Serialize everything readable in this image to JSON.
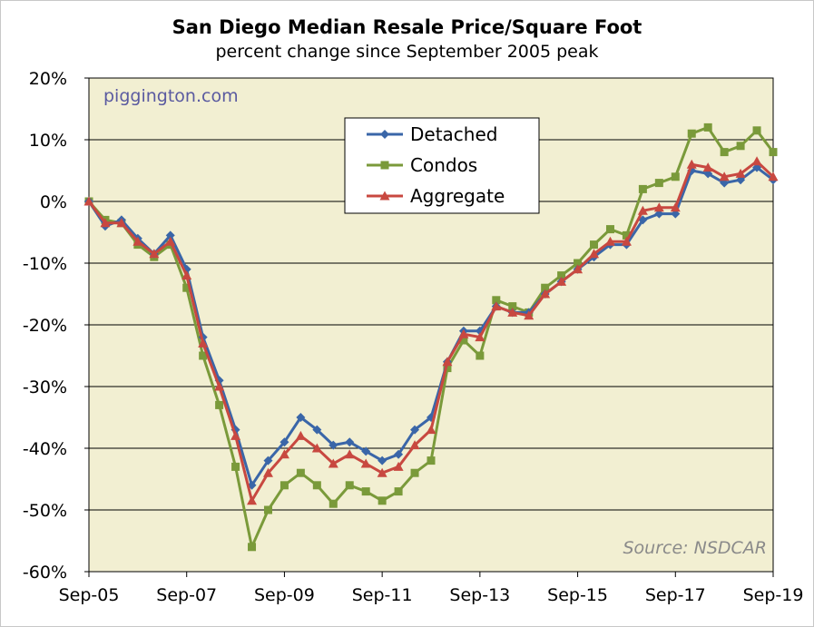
{
  "chart_data": {
    "type": "line",
    "title": "San Diego Median Resale Price/Square Foot",
    "subtitle": "percent change since September 2005 peak",
    "xlabel": "",
    "ylabel": "",
    "watermark": "piggington.com",
    "source": "Source: NSDCAR",
    "xlim": [
      "2005-09",
      "2019-09"
    ],
    "ylim": [
      -60,
      20
    ],
    "y_ticks": [
      20,
      10,
      0,
      -10,
      -20,
      -30,
      -40,
      -50,
      -60
    ],
    "y_tick_labels": [
      "20%",
      "10%",
      "0%",
      "-10%",
      "-20%",
      "-30%",
      "-40%",
      "-50%",
      "-60%"
    ],
    "x_tick_labels": [
      "Sep-05",
      "Sep-07",
      "Sep-09",
      "Sep-11",
      "Sep-13",
      "Sep-15",
      "Sep-17",
      "Sep-19"
    ],
    "x_tick_dates": [
      "2005-09",
      "2007-09",
      "2009-09",
      "2011-09",
      "2013-09",
      "2015-09",
      "2017-09",
      "2019-09"
    ],
    "grid": "horizontal",
    "legend_position": "top-center",
    "plot_background": "#f2efd2",
    "series": [
      {
        "name": "Detached",
        "color": "#3a66a8",
        "marker": "diamond",
        "points": [
          [
            "2005-09",
            0
          ],
          [
            "2006-01",
            -4
          ],
          [
            "2006-05",
            -3
          ],
          [
            "2006-09",
            -6
          ],
          [
            "2007-01",
            -8.5
          ],
          [
            "2007-05",
            -5.5
          ],
          [
            "2007-09",
            -11
          ],
          [
            "2008-01",
            -22
          ],
          [
            "2008-05",
            -29
          ],
          [
            "2008-09",
            -37
          ],
          [
            "2009-01",
            -46
          ],
          [
            "2009-05",
            -42
          ],
          [
            "2009-09",
            -39
          ],
          [
            "2010-01",
            -35
          ],
          [
            "2010-05",
            -37
          ],
          [
            "2010-09",
            -39.5
          ],
          [
            "2011-01",
            -39
          ],
          [
            "2011-05",
            -40.5
          ],
          [
            "2011-09",
            -42
          ],
          [
            "2012-01",
            -41
          ],
          [
            "2012-05",
            -37
          ],
          [
            "2012-09",
            -35
          ],
          [
            "2013-01",
            -26
          ],
          [
            "2013-05",
            -21
          ],
          [
            "2013-09",
            -21
          ],
          [
            "2014-01",
            -17
          ],
          [
            "2014-05",
            -18
          ],
          [
            "2014-09",
            -18
          ],
          [
            "2015-01",
            -15
          ],
          [
            "2015-05",
            -13
          ],
          [
            "2015-09",
            -11
          ],
          [
            "2016-01",
            -9
          ],
          [
            "2016-05",
            -7
          ],
          [
            "2016-09",
            -7
          ],
          [
            "2017-01",
            -3
          ],
          [
            "2017-05",
            -2
          ],
          [
            "2017-09",
            -2
          ],
          [
            "2018-01",
            5
          ],
          [
            "2018-05",
            4.5
          ],
          [
            "2018-09",
            3
          ],
          [
            "2019-01",
            3.5
          ],
          [
            "2019-05",
            5.5
          ],
          [
            "2019-09",
            3.5
          ]
        ]
      },
      {
        "name": "Condos",
        "color": "#7a9a3a",
        "marker": "square",
        "points": [
          [
            "2005-09",
            0
          ],
          [
            "2006-01",
            -3
          ],
          [
            "2006-05",
            -3.5
          ],
          [
            "2006-09",
            -7
          ],
          [
            "2007-01",
            -9
          ],
          [
            "2007-05",
            -7
          ],
          [
            "2007-09",
            -14
          ],
          [
            "2008-01",
            -25
          ],
          [
            "2008-05",
            -33
          ],
          [
            "2008-09",
            -43
          ],
          [
            "2009-01",
            -56
          ],
          [
            "2009-05",
            -50
          ],
          [
            "2009-09",
            -46
          ],
          [
            "2010-01",
            -44
          ],
          [
            "2010-05",
            -46
          ],
          [
            "2010-09",
            -49
          ],
          [
            "2011-01",
            -46
          ],
          [
            "2011-05",
            -47
          ],
          [
            "2011-09",
            -48.5
          ],
          [
            "2012-01",
            -47
          ],
          [
            "2012-05",
            -44
          ],
          [
            "2012-09",
            -42
          ],
          [
            "2013-01",
            -27
          ],
          [
            "2013-05",
            -22.5
          ],
          [
            "2013-09",
            -25
          ],
          [
            "2014-01",
            -16
          ],
          [
            "2014-05",
            -17
          ],
          [
            "2014-09",
            -18
          ],
          [
            "2015-01",
            -14
          ],
          [
            "2015-05",
            -12
          ],
          [
            "2015-09",
            -10
          ],
          [
            "2016-01",
            -7
          ],
          [
            "2016-05",
            -4.5
          ],
          [
            "2016-09",
            -5.5
          ],
          [
            "2017-01",
            2
          ],
          [
            "2017-05",
            3
          ],
          [
            "2017-09",
            4
          ],
          [
            "2018-01",
            11
          ],
          [
            "2018-05",
            12
          ],
          [
            "2018-09",
            8
          ],
          [
            "2019-01",
            9
          ],
          [
            "2019-05",
            11.5
          ],
          [
            "2019-09",
            8
          ]
        ]
      },
      {
        "name": "Aggregate",
        "color": "#c84840",
        "marker": "triangle",
        "points": [
          [
            "2005-09",
            0
          ],
          [
            "2006-01",
            -3.5
          ],
          [
            "2006-05",
            -3.5
          ],
          [
            "2006-09",
            -6.5
          ],
          [
            "2007-01",
            -8.5
          ],
          [
            "2007-05",
            -6.5
          ],
          [
            "2007-09",
            -12
          ],
          [
            "2008-01",
            -23
          ],
          [
            "2008-05",
            -30
          ],
          [
            "2008-09",
            -38
          ],
          [
            "2009-01",
            -48.5
          ],
          [
            "2009-05",
            -44
          ],
          [
            "2009-09",
            -41
          ],
          [
            "2010-01",
            -38
          ],
          [
            "2010-05",
            -40
          ],
          [
            "2010-09",
            -42.5
          ],
          [
            "2011-01",
            -41
          ],
          [
            "2011-05",
            -42.5
          ],
          [
            "2011-09",
            -44
          ],
          [
            "2012-01",
            -43
          ],
          [
            "2012-05",
            -39.5
          ],
          [
            "2012-09",
            -37
          ],
          [
            "2013-01",
            -26
          ],
          [
            "2013-05",
            -21.5
          ],
          [
            "2013-09",
            -22
          ],
          [
            "2014-01",
            -17
          ],
          [
            "2014-05",
            -18
          ],
          [
            "2014-09",
            -18.5
          ],
          [
            "2015-01",
            -15
          ],
          [
            "2015-05",
            -13
          ],
          [
            "2015-09",
            -11
          ],
          [
            "2016-01",
            -8.5
          ],
          [
            "2016-05",
            -6.5
          ],
          [
            "2016-09",
            -6.5
          ],
          [
            "2017-01",
            -1.5
          ],
          [
            "2017-05",
            -1
          ],
          [
            "2017-09",
            -1
          ],
          [
            "2018-01",
            6
          ],
          [
            "2018-05",
            5.5
          ],
          [
            "2018-09",
            4
          ],
          [
            "2019-01",
            4.5
          ],
          [
            "2019-05",
            6.5
          ],
          [
            "2019-09",
            4
          ]
        ]
      }
    ]
  }
}
